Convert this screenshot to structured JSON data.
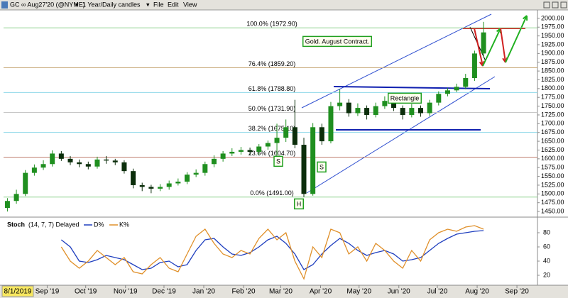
{
  "toolbar": {
    "symbol": "GC ∞ Aug27'20 (@NYME)",
    "period": "1 Year/Daily candles",
    "menu": [
      "File",
      "Edit",
      "View"
    ]
  },
  "chart_data": {
    "type": "candlestick",
    "x": [
      "2019-08-01",
      "2019-08-08",
      "2019-08-15",
      "2019-08-22",
      "2019-08-29",
      "2019-09-05",
      "2019-09-12",
      "2019-09-19",
      "2019-09-26",
      "2019-10-03",
      "2019-10-10",
      "2019-10-17",
      "2019-10-24",
      "2019-10-31",
      "2019-11-07",
      "2019-11-14",
      "2019-11-21",
      "2019-11-28",
      "2019-12-05",
      "2019-12-12",
      "2019-12-19",
      "2019-12-26",
      "2020-01-02",
      "2020-01-09",
      "2020-01-16",
      "2020-01-23",
      "2020-01-30",
      "2020-02-06",
      "2020-02-13",
      "2020-02-20",
      "2020-02-27",
      "2020-03-05",
      "2020-03-12",
      "2020-03-19",
      "2020-03-26",
      "2020-04-02",
      "2020-04-09",
      "2020-04-16",
      "2020-04-23",
      "2020-04-30",
      "2020-05-07",
      "2020-05-14",
      "2020-05-21",
      "2020-05-28",
      "2020-06-04",
      "2020-06-11",
      "2020-06-18",
      "2020-06-25",
      "2020-07-02",
      "2020-07-09",
      "2020-07-16",
      "2020-07-23",
      "2020-07-30",
      "2020-08-06"
    ],
    "open": [
      1460,
      1480,
      1500,
      1560,
      1575,
      1585,
      1615,
      1600,
      1590,
      1585,
      1578,
      1598,
      1595,
      1590,
      1565,
      1525,
      1520,
      1515,
      1520,
      1530,
      1535,
      1555,
      1560,
      1585,
      1600,
      1615,
      1620,
      1625,
      1620,
      1635,
      1645,
      1660,
      1690,
      1640,
      1500,
      1690,
      1650,
      1750,
      1760,
      1730,
      1745,
      1725,
      1750,
      1765,
      1745,
      1725,
      1745,
      1730,
      1760,
      1785,
      1795,
      1805,
      1830,
      1900
    ],
    "high": [
      1488,
      1512,
      1568,
      1584,
      1596,
      1624,
      1622,
      1608,
      1598,
      1592,
      1606,
      1608,
      1600,
      1596,
      1572,
      1532,
      1526,
      1528,
      1538,
      1544,
      1562,
      1570,
      1592,
      1610,
      1622,
      1630,
      1634,
      1632,
      1642,
      1652,
      1700,
      1712,
      1768,
      1660,
      1702,
      1700,
      1762,
      1798,
      1770,
      1758,
      1752,
      1760,
      1778,
      1770,
      1752,
      1756,
      1752,
      1768,
      1792,
      1802,
      1814,
      1842,
      1908,
      1990
    ],
    "low": [
      1450,
      1472,
      1494,
      1552,
      1568,
      1578,
      1594,
      1582,
      1576,
      1570,
      1572,
      1586,
      1582,
      1558,
      1516,
      1508,
      1502,
      1508,
      1512,
      1524,
      1528,
      1548,
      1552,
      1576,
      1592,
      1608,
      1612,
      1610,
      1612,
      1626,
      1596,
      1648,
      1630,
      1491,
      1495,
      1640,
      1644,
      1738,
      1720,
      1722,
      1712,
      1718,
      1742,
      1736,
      1712,
      1718,
      1720,
      1722,
      1752,
      1778,
      1790,
      1798,
      1822,
      1890
    ],
    "close": [
      1480,
      1500,
      1560,
      1575,
      1585,
      1615,
      1600,
      1590,
      1585,
      1578,
      1598,
      1595,
      1590,
      1565,
      1525,
      1520,
      1515,
      1520,
      1530,
      1535,
      1555,
      1560,
      1585,
      1600,
      1615,
      1620,
      1625,
      1620,
      1635,
      1645,
      1660,
      1690,
      1640,
      1500,
      1690,
      1650,
      1750,
      1760,
      1730,
      1745,
      1725,
      1750,
      1765,
      1745,
      1725,
      1745,
      1730,
      1760,
      1785,
      1795,
      1805,
      1830,
      1900,
      1960
    ],
    "up_color": "#1f8f1f",
    "down_color": "#0b2e0b",
    "xlim": [
      "2019-07-29",
      "2020-09-17"
    ],
    "xticks": [
      {
        "value": "2019-08-01",
        "label": "8/1/2019"
      },
      {
        "value": "2019-09-01",
        "label": "Sep '19"
      },
      {
        "value": "2019-10-01",
        "label": "Oct '19"
      },
      {
        "value": "2019-11-01",
        "label": "Nov '19"
      },
      {
        "value": "2019-12-01",
        "label": "Dec '19"
      },
      {
        "value": "2020-01-01",
        "label": "Jan '20"
      },
      {
        "value": "2020-02-01",
        "label": "Feb '20"
      },
      {
        "value": "2020-03-01",
        "label": "Mar '20"
      },
      {
        "value": "2020-04-01",
        "label": "Apr '20"
      },
      {
        "value": "2020-05-01",
        "label": "May '20"
      },
      {
        "value": "2020-06-01",
        "label": "Jun '20"
      },
      {
        "value": "2020-07-01",
        "label": "Jul '20"
      },
      {
        "value": "2020-08-01",
        "label": "Aug '20"
      },
      {
        "value": "2020-09-01",
        "label": "Sep '20"
      }
    ],
    "ylim": [
      1436,
      2024
    ],
    "yticks": [
      {
        "value": 1450,
        "label": "1450.00"
      },
      {
        "value": 1475,
        "label": "1475.00"
      },
      {
        "value": 1500,
        "label": "1500.00"
      },
      {
        "value": 1525,
        "label": "1525.00"
      },
      {
        "value": 1550,
        "label": "1550.00"
      },
      {
        "value": 1575,
        "label": "1575.00"
      },
      {
        "value": 1600,
        "label": "1600.00"
      },
      {
        "value": 1625,
        "label": "1625.00"
      },
      {
        "value": 1650,
        "label": "1650.00"
      },
      {
        "value": 1675,
        "label": "1675.00"
      },
      {
        "value": 1700,
        "label": "1700.00"
      },
      {
        "value": 1725,
        "label": "1725.00"
      },
      {
        "value": 1750,
        "label": "1750.00"
      },
      {
        "value": 1775,
        "label": "1775.00"
      },
      {
        "value": 1800,
        "label": "1800.00"
      },
      {
        "value": 1825,
        "label": "1825.00"
      },
      {
        "value": 1850,
        "label": "1850.00"
      },
      {
        "value": 1875,
        "label": "1875.00"
      },
      {
        "value": 1900,
        "label": "1900.00"
      },
      {
        "value": 1925,
        "label": "1925.00"
      },
      {
        "value": 1950,
        "label": "1950.00"
      },
      {
        "value": 1975,
        "label": "1975.00"
      },
      {
        "value": 2000,
        "label": "2000.00"
      }
    ],
    "fib_levels": [
      {
        "value": 1972.9,
        "label": "100.0% (1972.90)",
        "color": "#8fd18f"
      },
      {
        "value": 1859.2,
        "label": "76.4% (1859.20)",
        "color": "#c8a878"
      },
      {
        "value": 1788.8,
        "label": "61.8% (1788.80)",
        "color": "#8fd8e8"
      },
      {
        "value": 1731.9,
        "label": "50.0% (1731.90)",
        "color": "#c8c8c8"
      },
      {
        "value": 1675.1,
        "label": "38.2% (1675.10)",
        "color": "#8fd8e8"
      },
      {
        "value": 1604.7,
        "label": "23.6% (1604.70)",
        "color": "#c08070"
      },
      {
        "value": 1491.0,
        "label": "0.0% (1491.00)",
        "color": "#8fd18f"
      }
    ],
    "annotations": [
      "Gold. August Contract.",
      "Rectangle",
      "S",
      "S",
      "H"
    ],
    "indicator": {
      "type": "line",
      "title": "Stoch",
      "subtitle": "(14, 7, 7) Delayed",
      "ylim": [
        8,
        98
      ],
      "yticks": [
        20,
        40,
        60,
        80
      ],
      "series": [
        {
          "name": "D%",
          "color": "#1f3fbf",
          "values": [
            null,
            null,
            null,
            null,
            null,
            null,
            70,
            60,
            40,
            38,
            42,
            48,
            45,
            42,
            35,
            28,
            30,
            38,
            40,
            32,
            35,
            55,
            70,
            72,
            60,
            50,
            48,
            52,
            60,
            70,
            75,
            65,
            50,
            28,
            35,
            50,
            62,
            72,
            65,
            55,
            48,
            52,
            55,
            50,
            40,
            42,
            45,
            55,
            65,
            72,
            78,
            80,
            82,
            83
          ]
        },
        {
          "name": "K%",
          "color": "#e0902a",
          "values": [
            null,
            null,
            null,
            null,
            null,
            null,
            60,
            40,
            30,
            40,
            55,
            45,
            35,
            45,
            25,
            22,
            35,
            45,
            30,
            25,
            50,
            75,
            85,
            65,
            50,
            45,
            55,
            50,
            72,
            85,
            70,
            80,
            40,
            15,
            60,
            45,
            85,
            80,
            50,
            60,
            40,
            65,
            55,
            40,
            30,
            55,
            40,
            70,
            80,
            85,
            82,
            88,
            90,
            85
          ]
        }
      ]
    }
  }
}
